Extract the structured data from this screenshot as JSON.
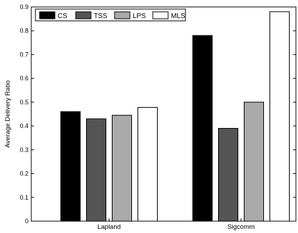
{
  "chart_data": {
    "type": "bar",
    "ylabel": "Average Delivery Ratio",
    "xlabel": "",
    "title": "",
    "ylim": [
      0,
      0.9
    ],
    "yticks": [
      "0",
      "0.1",
      "0.2",
      "0.3",
      "0.4",
      "0.5",
      "0.6",
      "0.7",
      "0.8",
      "0.9"
    ],
    "categories": [
      "Lapland",
      "Sigcomm"
    ],
    "grid": false,
    "legend_position": "top-left",
    "series": [
      {
        "name": "CS",
        "color": "#000000",
        "values": [
          0.46,
          0.78
        ]
      },
      {
        "name": "TSS",
        "color": "#555555",
        "values": [
          0.43,
          0.39
        ]
      },
      {
        "name": "LPS",
        "color": "#aaaaaa",
        "values": [
          0.445,
          0.5
        ]
      },
      {
        "name": "MLS",
        "color": "#ffffff",
        "values": [
          0.478,
          0.88
        ]
      }
    ]
  }
}
